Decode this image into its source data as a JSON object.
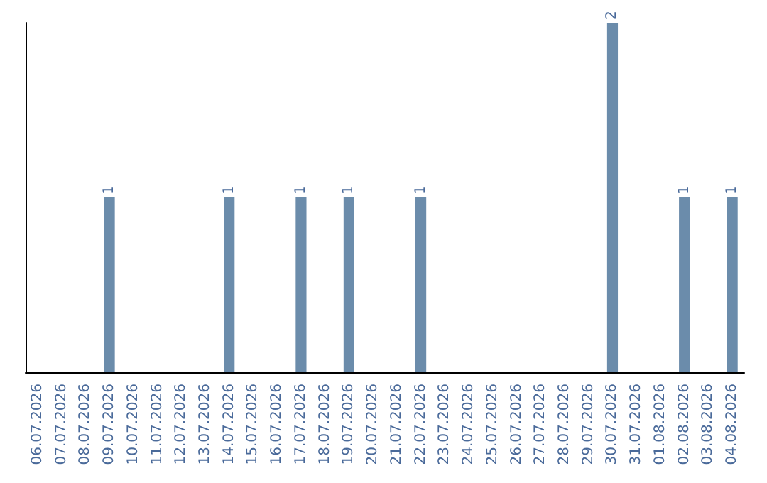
{
  "chart_data": {
    "type": "bar",
    "categories": [
      "06.07.2026",
      "07.07.2026",
      "08.07.2026",
      "09.07.2026",
      "10.07.2026",
      "11.07.2026",
      "12.07.2026",
      "13.07.2026",
      "14.07.2026",
      "15.07.2026",
      "16.07.2026",
      "17.07.2026",
      "18.07.2026",
      "19.07.2026",
      "20.07.2026",
      "21.07.2026",
      "22.07.2026",
      "23.07.2026",
      "24.07.2026",
      "25.07.2026",
      "26.07.2026",
      "27.07.2026",
      "28.07.2026",
      "29.07.2026",
      "30.07.2026",
      "31.07.2026",
      "01.08.2026",
      "02.08.2026",
      "03.08.2026",
      "04.08.2026"
    ],
    "values": [
      0,
      0,
      0,
      1,
      0,
      0,
      0,
      0,
      1,
      0,
      0,
      1,
      0,
      1,
      0,
      0,
      1,
      0,
      0,
      0,
      0,
      0,
      0,
      0,
      2,
      0,
      0,
      1,
      0,
      1
    ],
    "value_labels": [
      null,
      null,
      null,
      "1",
      null,
      null,
      null,
      null,
      "1",
      null,
      null,
      "1",
      null,
      "1",
      null,
      null,
      "1",
      null,
      null,
      null,
      null,
      null,
      null,
      null,
      "2",
      null,
      null,
      "1",
      null,
      "1"
    ],
    "color": "#6b8cab",
    "ylim": [
      0,
      2
    ],
    "tick_labels": "x",
    "grid": false
  }
}
